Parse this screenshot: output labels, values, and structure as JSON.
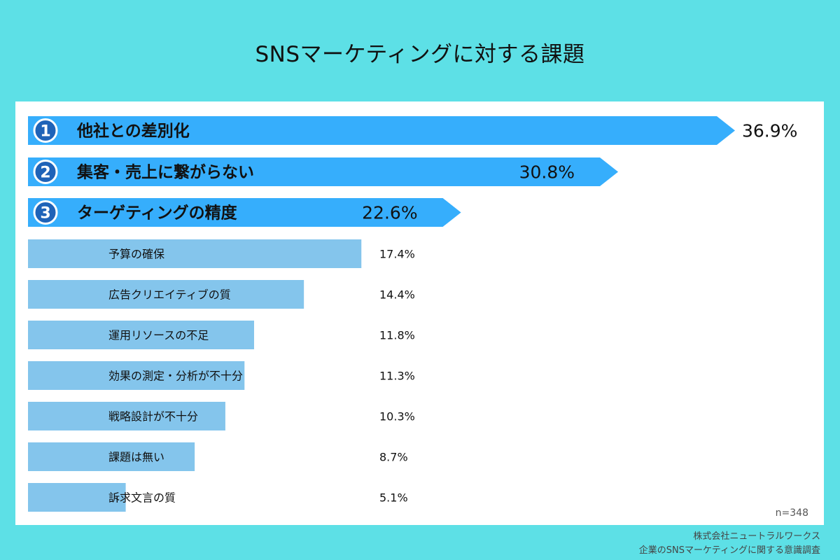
{
  "header": {
    "title": "SNSマーケティングに対する課題"
  },
  "chart_data": {
    "type": "bar",
    "orientation": "horizontal",
    "categories": [
      "他社との差別化",
      "集客・売上に繋がらない",
      "ターゲティングの精度",
      "予算の確保",
      "広告クリエイティブの質",
      "運用リソースの不足",
      "効果の測定・分析が不十分",
      "戦略設計が不十分",
      "課題は無い",
      "訴求文言の質"
    ],
    "values": [
      36.9,
      30.8,
      22.6,
      17.4,
      14.4,
      11.8,
      11.3,
      10.3,
      8.7,
      5.1
    ],
    "value_labels": [
      "36.9%",
      "30.8%",
      "22.6%",
      "17.4%",
      "14.4%",
      "11.8%",
      "11.3%",
      "10.3%",
      "8.7%",
      "5.1%"
    ],
    "top_ranks": [
      "1",
      "2",
      "3"
    ],
    "sample_size": "n=348",
    "colors": {
      "top": "#36aefc",
      "rest": "#84c5ec",
      "badge": "#1f63b8"
    }
  },
  "footer": {
    "company": "株式会社ニュートラルワークス",
    "survey": "企業のSNSマーケティングに関する意識調査"
  }
}
